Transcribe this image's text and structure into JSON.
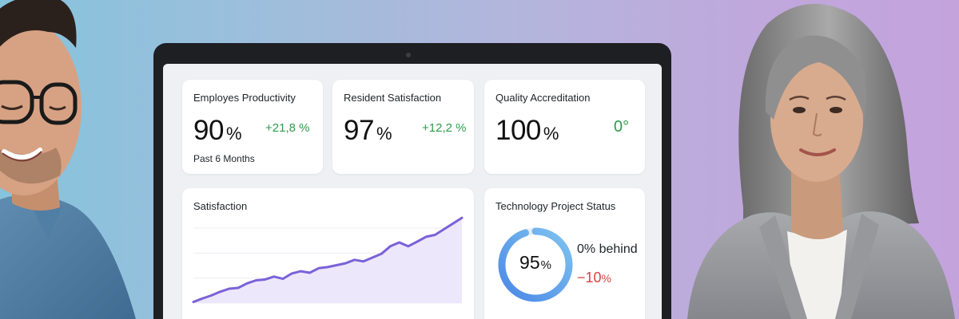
{
  "kpis": [
    {
      "title": "Employes Productivity",
      "value": "90",
      "unit": "%",
      "delta": "+21,8 %",
      "subtext": "Past 6 Months"
    },
    {
      "title": "Resident Satisfaction",
      "value": "97",
      "unit": "%",
      "delta": "+12,2 %"
    },
    {
      "title": "Quality Accreditation",
      "value": "100",
      "unit": "%",
      "delta": "0°"
    }
  ],
  "satisfaction": {
    "title": "Satisfaction"
  },
  "chart_data": {
    "type": "area",
    "title": "Satisfaction",
    "x": [
      0,
      1,
      2,
      3,
      4,
      5,
      6,
      7,
      8,
      9,
      10,
      11,
      12,
      13,
      14,
      15,
      16,
      17,
      18,
      19,
      20,
      21,
      22,
      23,
      24,
      25,
      26,
      27,
      28,
      29,
      30
    ],
    "values": [
      3,
      12,
      20,
      30,
      38,
      40,
      52,
      60,
      62,
      70,
      64,
      78,
      84,
      80,
      92,
      95,
      100,
      105,
      114,
      110,
      120,
      130,
      150,
      160,
      150,
      162,
      175,
      180,
      195,
      210,
      225
    ],
    "ylim": [
      0,
      240
    ],
    "grid": true,
    "xlabel": "",
    "ylabel": "",
    "colors": {
      "line": "#7a62d8",
      "fill": "#ebe4fb"
    }
  },
  "tech_status": {
    "title": "Technology Project Status",
    "value": "95",
    "unit": "%",
    "progress": 0.95,
    "behind_label": "0% behind",
    "change_value": "−10",
    "change_unit": "%",
    "colors": {
      "ring_start": "#4a88e6",
      "ring_end": "#7fc3f0",
      "negative": "#d9453d"
    }
  },
  "colors": {
    "positive": "#2f9a4b"
  }
}
